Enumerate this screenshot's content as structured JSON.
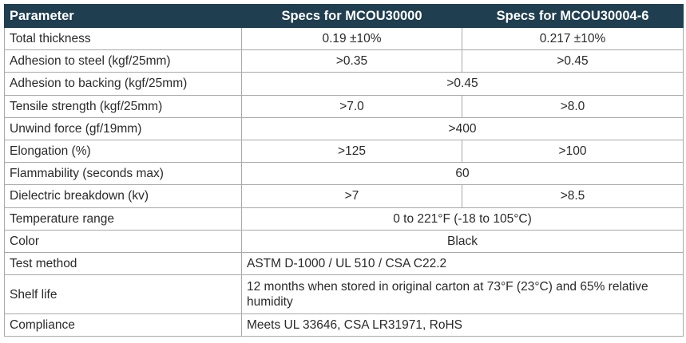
{
  "headers": {
    "parameter": "Parameter",
    "spec1": "Specs for MCOU30000",
    "spec2": "Specs for MCOU30004-6"
  },
  "rows": [
    {
      "param": "Total thickness",
      "v1": "0.19 ±10%",
      "v2": "0.217 ±10%"
    },
    {
      "param": "Adhesion to steel (kgf/25mm)",
      "v1": ">0.35",
      "v2": ">0.45"
    },
    {
      "param": "Adhesion to backing (kgf/25mm)",
      "both": ">0.45"
    },
    {
      "param": "Tensile strength (kgf/25mm)",
      "v1": ">7.0",
      "v2": ">8.0"
    },
    {
      "param": "Unwind force (gf/19mm)",
      "both": ">400"
    },
    {
      "param": "Elongation (%)",
      "v1": ">125",
      "v2": ">100"
    },
    {
      "param": "Flammability (seconds max)",
      "both": "60"
    },
    {
      "param": "Dielectric breakdown (kv)",
      "v1": ">7",
      "v2": ">8.5"
    },
    {
      "param": "Temperature range",
      "both": "0 to 221°F (-18 to 105°C)"
    },
    {
      "param": "Color",
      "both": "Black"
    },
    {
      "param": "Test method",
      "both": "ASTM D-1000 / UL 510 / CSA C22.2"
    },
    {
      "param": "Shelf life",
      "both": "12 months when stored in original carton at 73°F (23°C) and 65% relative humidity"
    },
    {
      "param": "Compliance",
      "both": "Meets UL 33646, CSA LR31971, RoHS"
    }
  ],
  "colors": {
    "header_bg": "#1f3e4f",
    "header_text": "#ffffff",
    "border": "#a9a9a9",
    "text": "#2a2a2a"
  }
}
